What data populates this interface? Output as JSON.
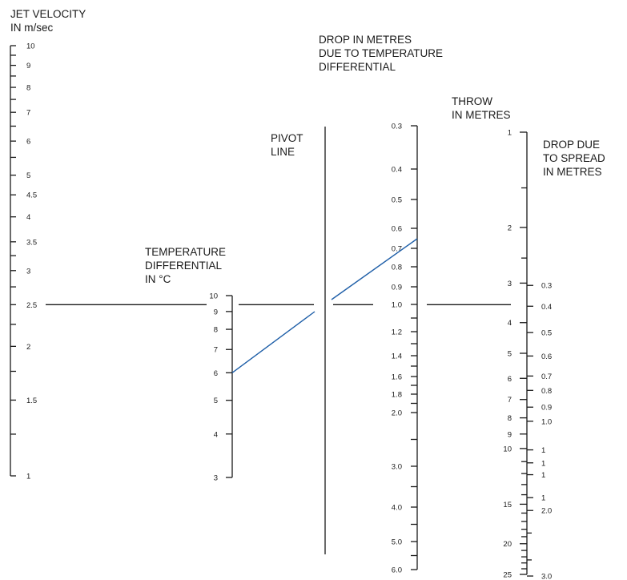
{
  "colors": {
    "ink": "#1a1a1a",
    "ray": "#1f5fa8",
    "background": "#ffffff"
  },
  "titles": {
    "jet_velocity": [
      "JET VELOCITY",
      "IN m/sec"
    ],
    "temperature": [
      "TEMPERATURE",
      "DIFFERENTIAL",
      "IN °C"
    ],
    "pivot": [
      "PIVOT",
      "LINE"
    ],
    "drop_temp": [
      "DROP IN METRES",
      "DUE TO TEMPERATURE",
      "DIFFERENTIAL"
    ],
    "throw": [
      "THROW",
      "IN METRES"
    ],
    "drop_spread": [
      "DROP DUE",
      "TO SPREAD",
      "IN METRES"
    ]
  },
  "scales": {
    "jet_velocity": {
      "labels": [
        "10",
        "9",
        "8",
        "7",
        "6",
        "5",
        "4.5",
        "4",
        "3.5",
        "3",
        "2.5",
        "2",
        "1.5",
        "1"
      ],
      "label_values": [
        10,
        9,
        8,
        7,
        6,
        5,
        4.5,
        4,
        3.5,
        3,
        2.5,
        2,
        1.5,
        1
      ],
      "minor_values": [
        9.5,
        8.5,
        7.5,
        6.5,
        5.5,
        3.25,
        2.75,
        2.25,
        1.75,
        1.25
      ]
    },
    "temperature": {
      "labels": [
        "10",
        "9",
        "8",
        "7",
        "6",
        "5",
        "4",
        "3"
      ],
      "label_values": [
        10,
        9,
        8,
        7,
        6,
        5,
        4,
        3
      ]
    },
    "drop_temp": {
      "labels": [
        "0.3",
        "0.4",
        "0.5",
        "0.6",
        "0.7",
        "0.8",
        "0.9",
        "1.0",
        "1.2",
        "1.4",
        "1.6",
        "1.8",
        "2.0",
        "3.0",
        "4.0",
        "5.0",
        "6.0"
      ],
      "label_values": [
        0.3,
        0.4,
        0.5,
        0.6,
        0.7,
        0.8,
        0.9,
        1.0,
        1.2,
        1.4,
        1.6,
        1.8,
        2.0,
        3.0,
        4.0,
        5.0,
        6.0
      ],
      "minor_values": [
        1.1,
        1.3,
        1.5,
        1.7,
        1.9,
        2.5,
        3.5,
        4.5,
        5.5
      ]
    },
    "throw": {
      "labels": [
        "1",
        "2",
        "3",
        "4",
        "5",
        "6",
        "7",
        "8",
        "9",
        "10",
        "15",
        "20",
        "25"
      ],
      "label_values": [
        1,
        2,
        3,
        4,
        5,
        6,
        7,
        8,
        9,
        10,
        15,
        20,
        25
      ],
      "minor_values": [
        1.5,
        2.5,
        11,
        12,
        13,
        14,
        16,
        17,
        18,
        19,
        21,
        22,
        23,
        24
      ]
    },
    "drop_spread": {
      "labels": [
        "0.3",
        "0.4",
        "0.5",
        "0.6",
        "0.7",
        "0.8",
        "0.9",
        "1.0",
        "1",
        "1",
        "1",
        "1",
        "2.0",
        "3.0"
      ],
      "label_throw_values": [
        3.05,
        3.55,
        4.3,
        5.1,
        5.9,
        6.55,
        7.4,
        8.2,
        10.1,
        11.1,
        12.1,
        14.3,
        15.7,
        25.3
      ],
      "minor_throw_values": [
        18.5,
        22.5
      ]
    }
  },
  "example": {
    "jet_velocity": 2.5,
    "temperature_differential": 9,
    "second_temperature_differential": 6,
    "drop_due_to_temperature": 1.0,
    "throw": 4
  }
}
